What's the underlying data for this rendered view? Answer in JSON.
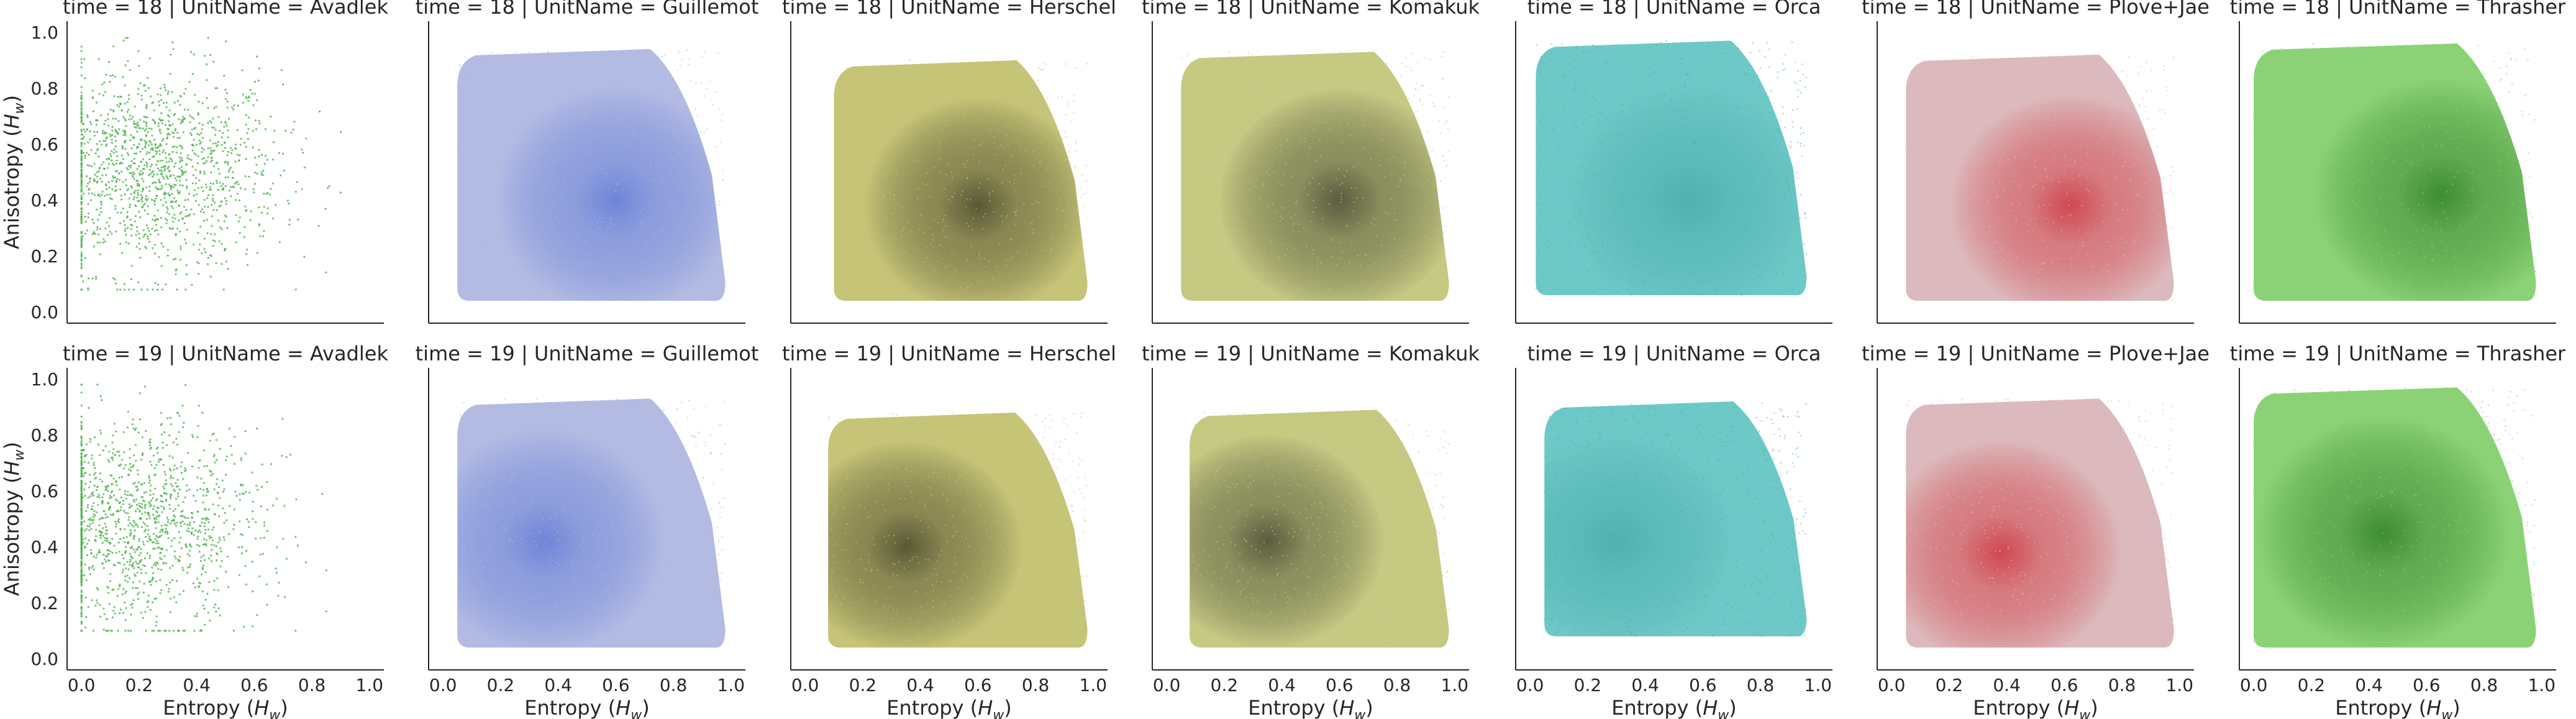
{
  "chart_data": {
    "type": "scatter",
    "facet_row_var": "time",
    "facet_col_var": "UnitName",
    "row_values": [
      "18",
      "19"
    ],
    "col_values": [
      "Avadlek",
      "Guillemot",
      "Herschel",
      "Komakuk",
      "Orca",
      "Plove+Jae",
      "Thrasher"
    ],
    "titles": [
      [
        "time = 18 | UnitName = Avadlek",
        "time = 18 | UnitName = Guillemot",
        "time = 18 | UnitName = Herschel",
        "time = 18 | UnitName = Komakuk",
        "time = 18 | UnitName = Orca",
        "time = 18 | UnitName = Plove+Jae",
        "time = 18 | UnitName = Thrasher"
      ],
      [
        "time = 19 | UnitName = Avadlek",
        "time = 19 | UnitName = Guillemot",
        "time = 19 | UnitName = Herschel",
        "time = 19 | UnitName = Komakuk",
        "time = 19 | UnitName = Orca",
        "time = 19 | UnitName = Plove+Jae",
        "time = 19 | UnitName = Thrasher"
      ]
    ],
    "xlabel": "Entropy (H_w)",
    "ylabel": "Anisotropy (H_w)",
    "xlabel_main": "Entropy (",
    "ylabel_main": "Anisotropy (",
    "label_sym": "H",
    "label_sub": "w",
    "label_close": ")",
    "xlim": [
      -0.05,
      1.05
    ],
    "ylim": [
      -0.04,
      1.04
    ],
    "xticks": [
      "0.0",
      "0.2",
      "0.4",
      "0.6",
      "0.8",
      "1.0"
    ],
    "yticks": [
      "0.0",
      "0.2",
      "0.4",
      "0.6",
      "0.8",
      "1.0"
    ],
    "grid": false,
    "colors": {
      "Avadlek": "#4db34d",
      "Guillemot": "#b3bbe3",
      "Herschel": "#c6c476",
      "Komakuk": "#c5c982",
      "Orca": "#6dc9c7",
      "Plove+Jae": "#dcb9bc",
      "Thrasher": "#8bd276"
    },
    "core_colors": {
      "Avadlek": "#3f9f3f",
      "Guillemot": "#6f85d8",
      "Herschel": "#5a5836",
      "Komakuk": "#5a5c3f",
      "Orca": "#4fb0ae",
      "Plove+Jae": "#d0484f",
      "Thrasher": "#3e8c33"
    },
    "panels": [
      [
        {
          "density": "sparse",
          "x_range": [
            0.0,
            0.9
          ],
          "y_range": [
            0.08,
            0.98
          ],
          "center": [
            0.25,
            0.5
          ]
        },
        {
          "density": "dense",
          "x_range": [
            0.05,
            0.98
          ],
          "y_range": [
            0.04,
            0.94
          ],
          "center": [
            0.6,
            0.4
          ]
        },
        {
          "density": "dense",
          "x_range": [
            0.1,
            0.98
          ],
          "y_range": [
            0.04,
            0.9
          ],
          "center": [
            0.6,
            0.38
          ]
        },
        {
          "density": "dense",
          "x_range": [
            0.05,
            0.98
          ],
          "y_range": [
            0.04,
            0.93
          ],
          "center": [
            0.6,
            0.4
          ]
        },
        {
          "density": "medium",
          "x_range": [
            0.02,
            0.96
          ],
          "y_range": [
            0.06,
            0.97
          ],
          "center": [
            0.55,
            0.4
          ]
        },
        {
          "density": "dense",
          "x_range": [
            0.05,
            0.98
          ],
          "y_range": [
            0.04,
            0.92
          ],
          "center": [
            0.62,
            0.38
          ]
        },
        {
          "density": "dense",
          "x_range": [
            0.0,
            0.98
          ],
          "y_range": [
            0.04,
            0.96
          ],
          "center": [
            0.65,
            0.42
          ]
        }
      ],
      [
        {
          "density": "sparse",
          "x_range": [
            0.0,
            0.85
          ],
          "y_range": [
            0.1,
            0.98
          ],
          "center": [
            0.18,
            0.48
          ]
        },
        {
          "density": "dense",
          "x_range": [
            0.05,
            0.98
          ],
          "y_range": [
            0.04,
            0.93
          ],
          "center": [
            0.35,
            0.42
          ]
        },
        {
          "density": "dense",
          "x_range": [
            0.08,
            0.98
          ],
          "y_range": [
            0.04,
            0.88
          ],
          "center": [
            0.35,
            0.4
          ]
        },
        {
          "density": "dense",
          "x_range": [
            0.08,
            0.98
          ],
          "y_range": [
            0.04,
            0.89
          ],
          "center": [
            0.35,
            0.42
          ]
        },
        {
          "density": "medium",
          "x_range": [
            0.05,
            0.96
          ],
          "y_range": [
            0.08,
            0.92
          ],
          "center": [
            0.3,
            0.42
          ]
        },
        {
          "density": "dense",
          "x_range": [
            0.05,
            0.98
          ],
          "y_range": [
            0.04,
            0.93
          ],
          "center": [
            0.38,
            0.38
          ]
        },
        {
          "density": "dense",
          "x_range": [
            0.0,
            0.98
          ],
          "y_range": [
            0.04,
            0.97
          ],
          "center": [
            0.45,
            0.45
          ]
        }
      ]
    ]
  }
}
